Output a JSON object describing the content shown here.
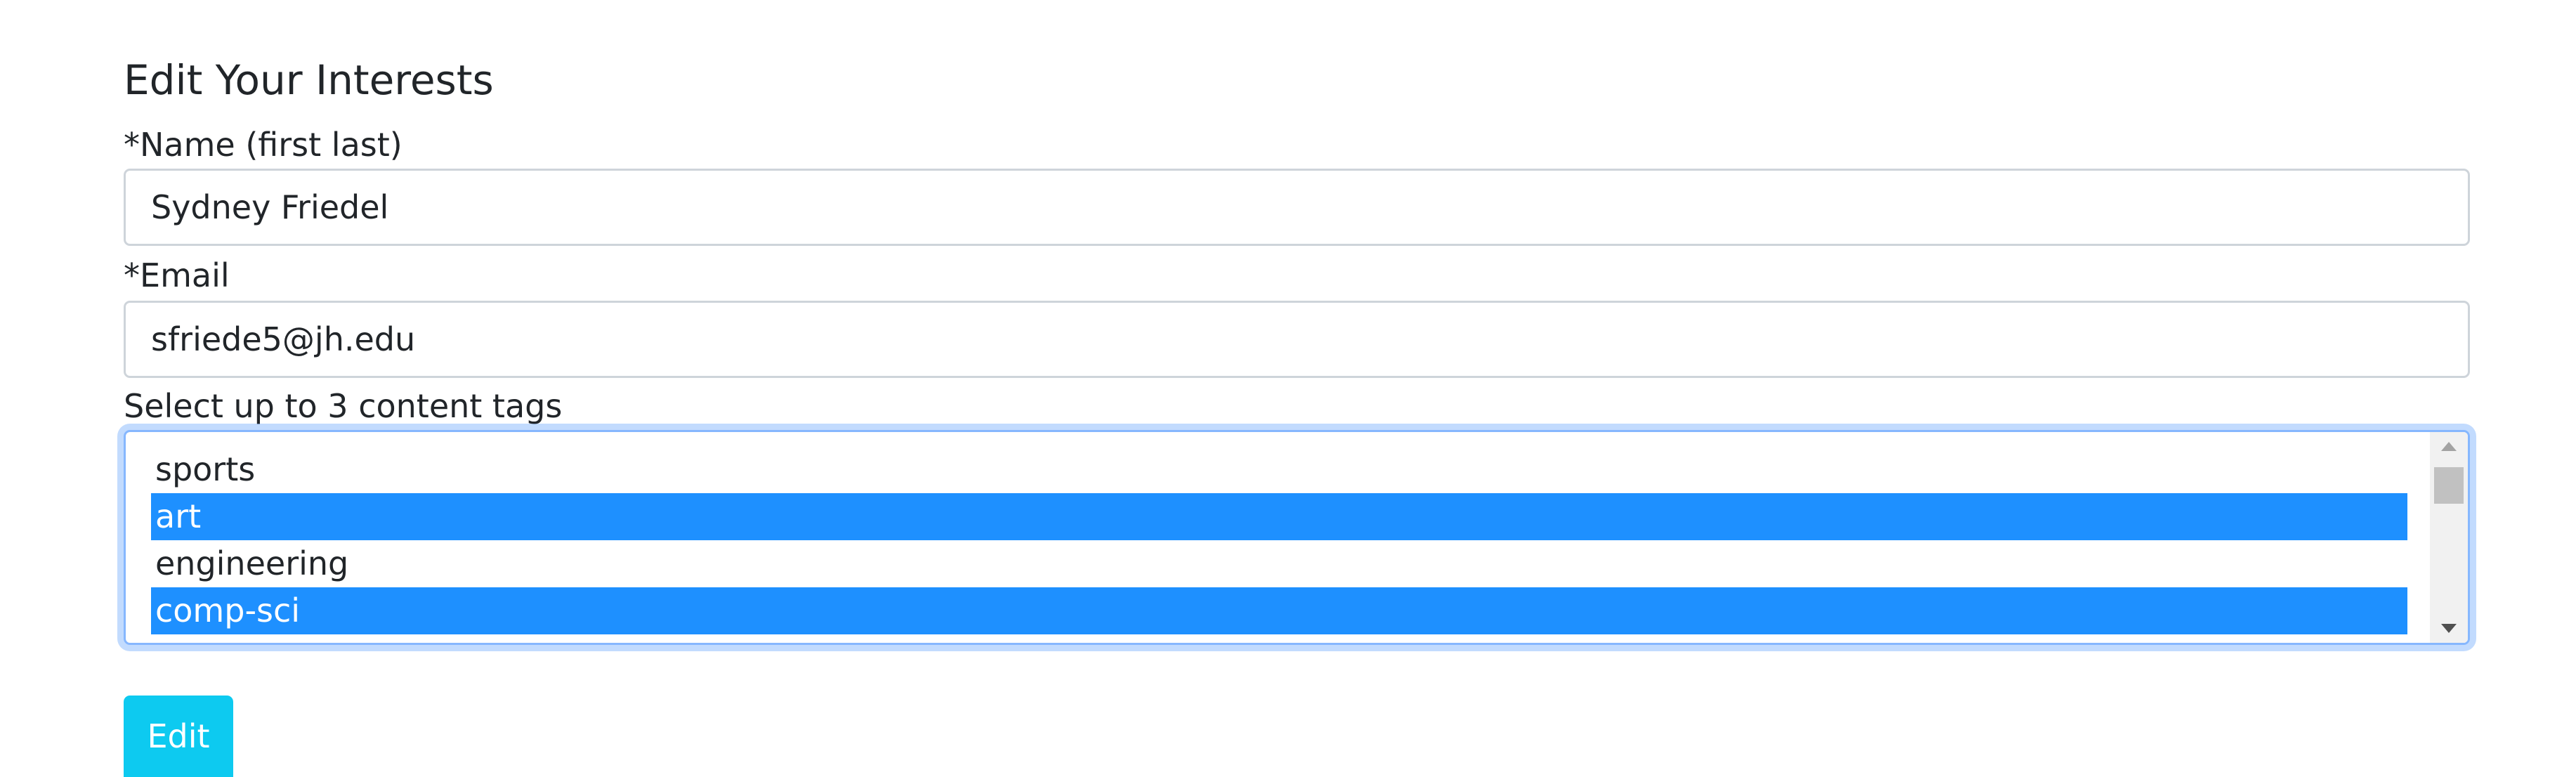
{
  "form": {
    "title": "Edit Your Interests",
    "name_label": "*Name (first last)",
    "name_value": "Sydney Friedel",
    "email_label": "*Email",
    "email_value": "sfriede5@jh.edu",
    "tags_label": "Select up to 3 content tags",
    "tags_options": [
      {
        "label": "sports",
        "selected": false
      },
      {
        "label": "art",
        "selected": true
      },
      {
        "label": "engineering",
        "selected": false
      },
      {
        "label": "comp-sci",
        "selected": true
      }
    ],
    "submit_label": "Edit"
  },
  "colors": {
    "selected_option_bg": "#1e90ff",
    "button_bg": "#0dcaf0",
    "focus_border": "#86b7fe"
  }
}
